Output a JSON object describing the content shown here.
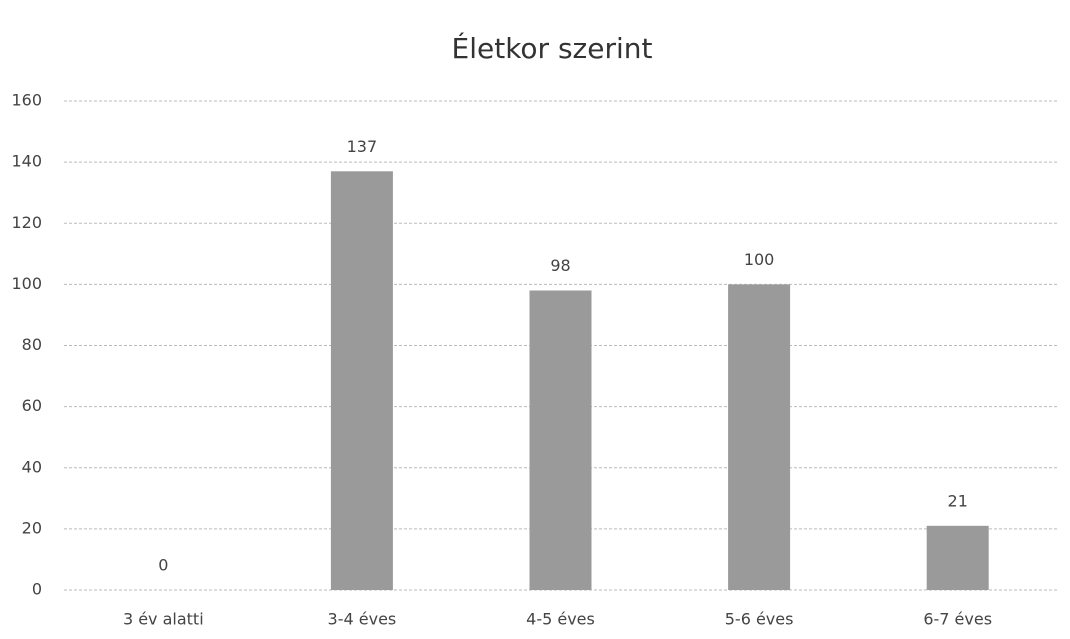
{
  "chart_data": {
    "type": "bar",
    "title": "Életkor szerint",
    "categories": [
      "3 év alatti",
      "3-4 éves",
      "4-5 éves",
      "5-6 éves",
      "6-7 éves"
    ],
    "values": [
      0,
      137,
      98,
      100,
      21
    ],
    "color": "#9a9a9a",
    "ylim": [
      0,
      160
    ],
    "yticks": [
      0,
      20,
      40,
      60,
      80,
      100,
      120,
      140,
      160
    ],
    "grid": true
  }
}
